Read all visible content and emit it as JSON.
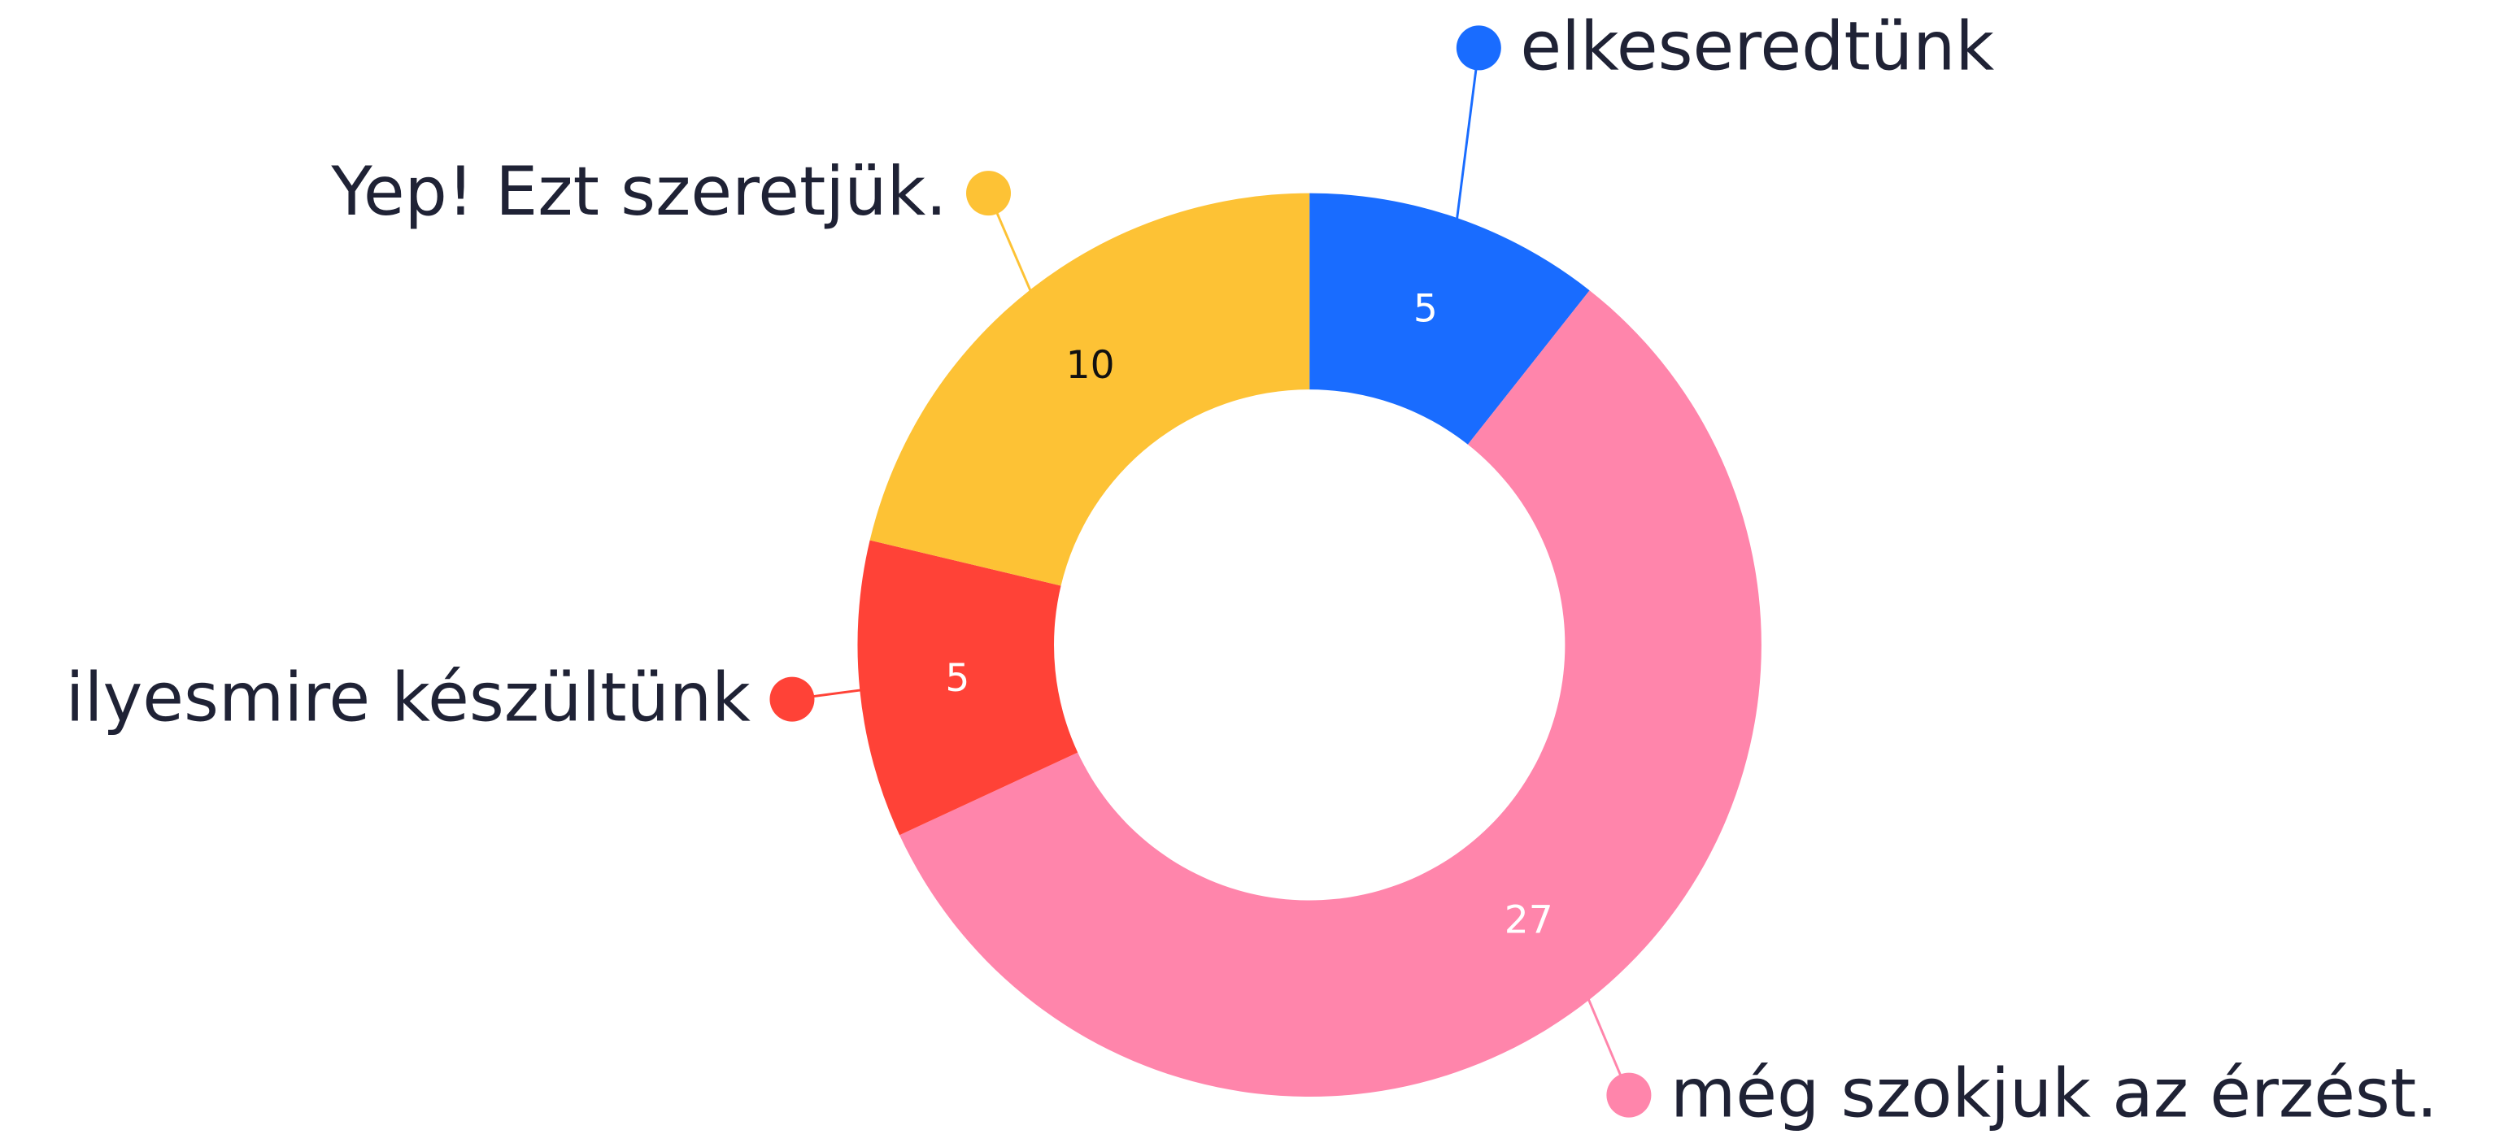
{
  "chart_data": {
    "type": "donut",
    "categories": [
      "elkeseredtünk",
      "még szokjuk az érzést.",
      "ilyesmire készültünk",
      "Yep! Ezt szeretjük."
    ],
    "values": [
      5,
      27,
      5,
      10
    ],
    "colors": [
      "#196cff",
      "#ff85ab",
      "#ff4237",
      "#fdc235"
    ]
  }
}
